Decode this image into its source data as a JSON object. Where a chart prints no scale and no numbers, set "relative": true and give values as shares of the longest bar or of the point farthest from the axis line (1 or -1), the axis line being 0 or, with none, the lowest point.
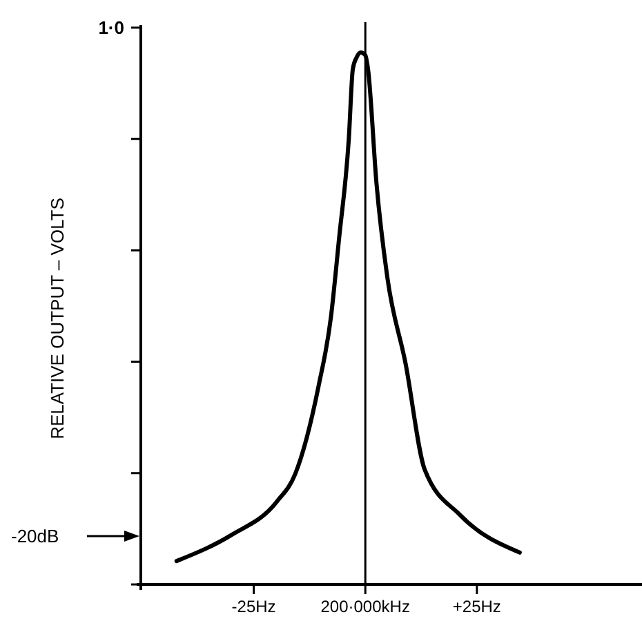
{
  "chart_data": {
    "type": "line",
    "ylabel": "RELATIVE OUTPUT – VOLTS",
    "relative": true,
    "xlim": [
      -50,
      62
    ],
    "xticks": [
      {
        "value": -25,
        "label": "-25Hz"
      },
      {
        "value": 0,
        "label": "200·000kHz"
      },
      {
        "value": 25,
        "label": "+25Hz"
      }
    ],
    "ref_lines": [
      {
        "axis": "x",
        "value": 0,
        "color": "#000000"
      }
    ],
    "annotations": [
      "1·0",
      "-20dB"
    ],
    "grid": false,
    "marker": "none",
    "line_style": "solid",
    "series": [
      {
        "color": "#000000",
        "x": [
          -42.3,
          -30,
          -19.8,
          -15.7,
          -10.5,
          -7.7,
          -5.9,
          -3.7,
          -2.8,
          -2,
          -1,
          0,
          0.6,
          2.5,
          4.9,
          9,
          13.3,
          21.3,
          34.6
        ],
        "values": [
          0.044,
          0.093,
          0.156,
          0.208,
          0.372,
          0.503,
          0.649,
          0.838,
          0.969,
          0.99,
          1,
          0.995,
          0.969,
          0.754,
          0.579,
          0.416,
          0.216,
          0.13,
          0.06
        ]
      }
    ]
  }
}
